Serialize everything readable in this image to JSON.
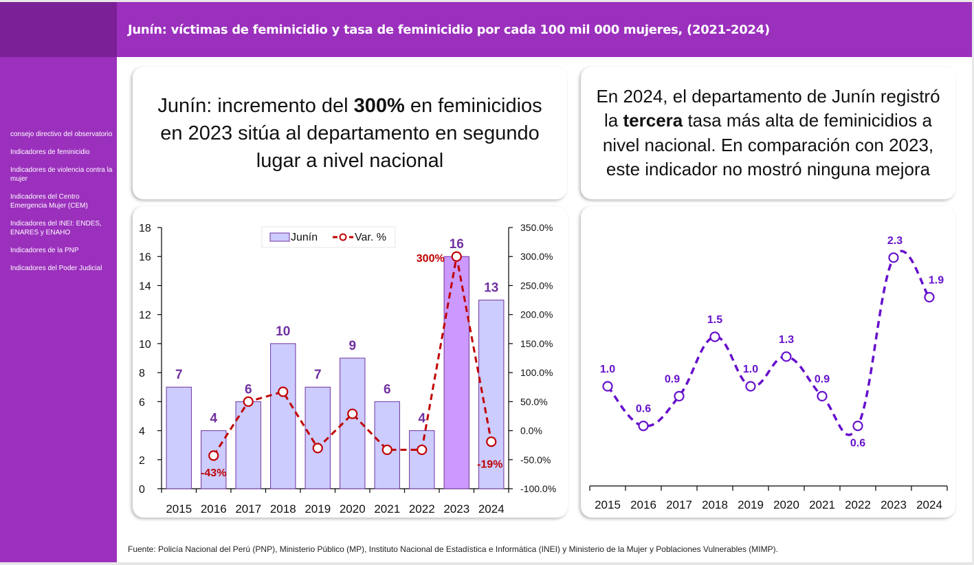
{
  "header": {
    "title": "Junín: víctimas de feminicidio y tasa de feminicidio por cada 100 mil 000 mujeres, (2021-2024)"
  },
  "sidebar": {
    "items": [
      {
        "label": "consejo directivo del observatorio"
      },
      {
        "label": "Indicadores de feminicidio"
      },
      {
        "label": "Indicadores de violencia contra la mujer"
      },
      {
        "label": "Indicadores del Centro Emergencia Mujer (CEM)"
      },
      {
        "label": "Indicadores del INEI: ENDES, ENARES y ENAHO"
      },
      {
        "label": "Indicadores de la PNP"
      },
      {
        "label": "Indicadores del Poder Judicial"
      }
    ]
  },
  "highlights": {
    "left": {
      "before": "Junín: incremento del ",
      "bold": "300%",
      "after": " en feminicidios en 2023 sitúa al departamento en segundo lugar a nivel nacional"
    },
    "right": {
      "before": "En 2024, el departamento de Junín registró la ",
      "bold": "tercera",
      "after": " tasa más alta de feminicidios a nivel nacional. En comparación con 2023, este indicador no mostró ninguna mejora"
    }
  },
  "footer": {
    "source": "Fuente: Policía Nacional del Perú (PNP), Ministerio Público (MP), Instituto Nacional de Estadística e Informática (INEI) y Ministerio de la Mujer y Poblaciones Vulnerables (MIMP)."
  },
  "colors": {
    "header_bg": "#9b30bd",
    "corner_bg": "#7b2097",
    "bar_fill": "#ccccff",
    "bar_highlight_fill": "#cc99ff",
    "bar_stroke": "#7030a0",
    "bar_label": "#7030a0",
    "var_line": "#c00000",
    "rate_line": "#6610cc"
  },
  "chart_data": [
    {
      "type": "bar",
      "title": "",
      "categories": [
        "2015",
        "2016",
        "2017",
        "2018",
        "2019",
        "2020",
        "2021",
        "2022",
        "2023",
        "2024"
      ],
      "series": [
        {
          "name": "Junín",
          "type": "bar",
          "axis": "left",
          "values": [
            7,
            4,
            6,
            10,
            7,
            9,
            6,
            4,
            16,
            13
          ],
          "highlight_index": 8
        },
        {
          "name": "Var. %",
          "type": "line",
          "axis": "right",
          "values": [
            null,
            -43,
            50,
            67,
            -30,
            29,
            -33,
            -33,
            300,
            -19
          ],
          "labels": [
            "",
            "-43%",
            "",
            "",
            "",
            "",
            "",
            "",
            "300%",
            "-19%"
          ]
        }
      ],
      "ylim": [
        0,
        18
      ],
      "yticks": [
        "0",
        "2",
        "4",
        "6",
        "8",
        "10",
        "12",
        "14",
        "16",
        "18"
      ],
      "y2lim": [
        -100,
        350
      ],
      "y2ticks": [
        "-100.0%",
        "-50.0%",
        "0.0%",
        "50.0%",
        "100.0%",
        "150.0%",
        "200.0%",
        "250.0%",
        "300.0%",
        "350.0%"
      ],
      "legend": {
        "position": "top-center",
        "entries": [
          "Junín",
          "Var. %"
        ]
      },
      "grid": false,
      "xlabel": "",
      "ylabel": ""
    },
    {
      "type": "line",
      "title": "",
      "categories": [
        "2015",
        "2016",
        "2017",
        "2018",
        "2019",
        "2020",
        "2021",
        "2022",
        "2023",
        "2024"
      ],
      "series": [
        {
          "name": "Tasa de feminicidio",
          "values": [
            1.0,
            0.6,
            0.9,
            1.5,
            1.0,
            1.3,
            0.9,
            0.6,
            2.3,
            1.9
          ],
          "labels": [
            "1.0",
            "0.6",
            "0.9",
            "1.5",
            "1.0",
            "1.3",
            "0.9",
            "0.6",
            "2.3",
            "1.9"
          ]
        }
      ],
      "ylim": [
        0,
        2.5
      ],
      "yaxis_visible": false,
      "grid": false,
      "xlabel": "",
      "ylabel": ""
    }
  ]
}
